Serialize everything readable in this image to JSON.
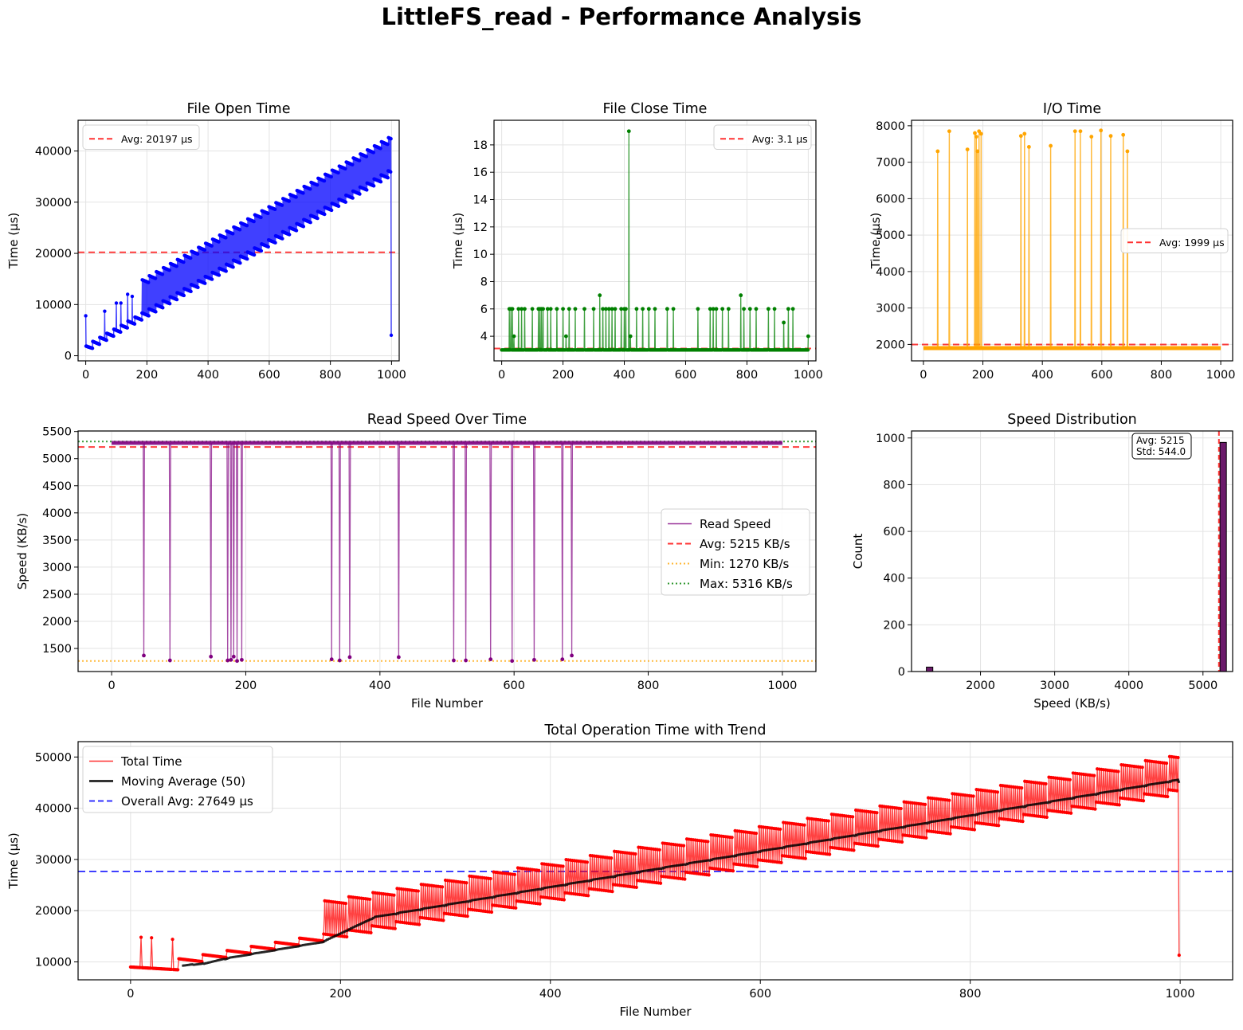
{
  "figure_title": "LittleFS_read - Performance Analysis",
  "colors": {
    "open": "#0000ff",
    "close": "#008000",
    "io": "#ffa500",
    "speed": "#800080",
    "total": "#ff0000",
    "avg": "#ff0000",
    "min": "#ffa500",
    "max": "#008000",
    "moving": "#000000",
    "overall": "#0000ff",
    "hist": "#6b1a6b"
  },
  "chart_data": [
    {
      "id": "open",
      "type": "line",
      "title": "File Open Time",
      "xlabel": "",
      "ylabel": "Time (µs)",
      "xlim": [
        -25,
        1025
      ],
      "ylim": [
        -1000,
        46000
      ],
      "xticks": [
        0,
        200,
        400,
        600,
        800,
        1000
      ],
      "yticks": [
        0,
        10000,
        20000,
        30000,
        40000
      ],
      "legend": [
        "Avg: 20197 µs"
      ],
      "legend_position": "upper-left",
      "average": 20197,
      "model": {
        "n": 1000,
        "period": 23,
        "base_start": 2000,
        "base_end": 36500,
        "spike_height": 6500,
        "first_level": 1900,
        "final_value": 4000
      },
      "spikes": [
        [
          0,
          7800
        ],
        [
          62,
          8700
        ],
        [
          100,
          10300
        ],
        [
          115,
          10300
        ],
        [
          137,
          12000
        ],
        [
          152,
          11600
        ]
      ]
    },
    {
      "id": "close",
      "type": "line",
      "title": "File Close Time",
      "xlabel": "",
      "ylabel": "Time (µs)",
      "xlim": [
        -25,
        1025
      ],
      "ylim": [
        2.2,
        19.8
      ],
      "xticks": [
        0,
        200,
        400,
        600,
        800,
        1000
      ],
      "yticks": [
        4,
        6,
        8,
        10,
        12,
        14,
        16,
        18
      ],
      "legend": [
        "Avg: 3.1 µs"
      ],
      "legend_position": "upper-right",
      "average": 3.1,
      "baseline": 3,
      "spikes": [
        [
          25,
          6
        ],
        [
          30,
          6
        ],
        [
          35,
          6
        ],
        [
          40,
          4
        ],
        [
          55,
          6
        ],
        [
          65,
          6
        ],
        [
          75,
          6
        ],
        [
          100,
          6
        ],
        [
          120,
          6
        ],
        [
          125,
          6
        ],
        [
          130,
          6
        ],
        [
          135,
          6
        ],
        [
          150,
          6
        ],
        [
          160,
          6
        ],
        [
          180,
          6
        ],
        [
          200,
          6
        ],
        [
          210,
          4
        ],
        [
          220,
          6
        ],
        [
          240,
          6
        ],
        [
          270,
          6
        ],
        [
          300,
          6
        ],
        [
          320,
          7
        ],
        [
          330,
          6
        ],
        [
          340,
          6
        ],
        [
          350,
          6
        ],
        [
          360,
          6
        ],
        [
          370,
          6
        ],
        [
          390,
          6
        ],
        [
          400,
          6
        ],
        [
          405,
          6
        ],
        [
          415,
          19
        ],
        [
          420,
          4
        ],
        [
          440,
          6
        ],
        [
          460,
          6
        ],
        [
          480,
          6
        ],
        [
          500,
          6
        ],
        [
          540,
          6
        ],
        [
          560,
          6
        ],
        [
          640,
          6
        ],
        [
          680,
          6
        ],
        [
          690,
          6
        ],
        [
          700,
          6
        ],
        [
          720,
          6
        ],
        [
          740,
          6
        ],
        [
          780,
          7
        ],
        [
          790,
          6
        ],
        [
          810,
          6
        ],
        [
          830,
          6
        ],
        [
          870,
          6
        ],
        [
          890,
          6
        ],
        [
          920,
          5
        ],
        [
          935,
          6
        ],
        [
          950,
          6
        ],
        [
          1000,
          4
        ]
      ]
    },
    {
      "id": "io",
      "type": "line",
      "title": "I/O Time",
      "xlabel": "",
      "ylabel": "Time (µs)",
      "xlim": [
        -40,
        1040
      ],
      "ylim": [
        1550,
        8150
      ],
      "xticks": [
        0,
        200,
        400,
        600,
        800,
        1000
      ],
      "yticks": [
        2000,
        3000,
        4000,
        5000,
        6000,
        7000,
        8000
      ],
      "legend": [
        "Avg: 1999 µs"
      ],
      "legend_position": "center-right",
      "average": 1999,
      "baseline": 1900,
      "spikes": [
        [
          48,
          7300
        ],
        [
          87,
          7850
        ],
        [
          148,
          7350
        ],
        [
          173,
          7800
        ],
        [
          178,
          7700
        ],
        [
          182,
          7300
        ],
        [
          187,
          7850
        ],
        [
          194,
          7780
        ],
        [
          328,
          7720
        ],
        [
          340,
          7780
        ],
        [
          355,
          7420
        ],
        [
          428,
          7450
        ],
        [
          510,
          7850
        ],
        [
          528,
          7850
        ],
        [
          565,
          7700
        ],
        [
          597,
          7870
        ],
        [
          630,
          7720
        ],
        [
          672,
          7750
        ],
        [
          686,
          7300
        ]
      ]
    },
    {
      "id": "speed",
      "type": "line",
      "title": "Read Speed Over Time",
      "xlabel": "File Number",
      "ylabel": "Speed (KB/s)",
      "xlim": [
        -50,
        1050
      ],
      "ylim": [
        1075,
        5510
      ],
      "xticks": [
        0,
        200,
        400,
        600,
        800,
        1000
      ],
      "yticks": [
        1500,
        2000,
        2500,
        3000,
        3500,
        4000,
        4500,
        5000,
        5500
      ],
      "legend": [
        "Read Speed",
        "Avg: 5215 KB/s",
        "Min: 1270 KB/s",
        "Max: 5316 KB/s"
      ],
      "legend_position": "center-right",
      "average": 5215,
      "min": 1270,
      "max": 5316,
      "baseline": 5290,
      "dips": [
        [
          48,
          1370
        ],
        [
          87,
          1280
        ],
        [
          148,
          1350
        ],
        [
          173,
          1280
        ],
        [
          178,
          1290
        ],
        [
          182,
          1350
        ],
        [
          187,
          1270
        ],
        [
          194,
          1290
        ],
        [
          328,
          1300
        ],
        [
          340,
          1280
        ],
        [
          355,
          1340
        ],
        [
          428,
          1340
        ],
        [
          510,
          1280
        ],
        [
          528,
          1280
        ],
        [
          565,
          1300
        ],
        [
          597,
          1270
        ],
        [
          630,
          1290
        ],
        [
          672,
          1300
        ],
        [
          686,
          1370
        ]
      ]
    },
    {
      "id": "dist",
      "type": "bar",
      "title": "Speed Distribution",
      "xlabel": "Speed (KB/s)",
      "ylabel": "Count",
      "xlim": [
        1070,
        5400
      ],
      "ylim": [
        0,
        1030
      ],
      "xticks": [
        2000,
        3000,
        4000,
        5000
      ],
      "yticks": [
        0,
        200,
        400,
        600,
        800,
        1000
      ],
      "bins": [
        [
          1270,
          1357,
          19
        ],
        [
          5229,
          5316,
          981
        ]
      ],
      "average": 5215,
      "annotation": [
        "Avg: 5215",
        "Std: 544.0"
      ]
    },
    {
      "id": "total",
      "type": "line",
      "title": "Total Operation Time with Trend",
      "xlabel": "File Number",
      "ylabel": "Time (µs)",
      "xlim": [
        -50,
        1050
      ],
      "ylim": [
        6500,
        53000
      ],
      "xticks": [
        0,
        200,
        400,
        600,
        800,
        1000
      ],
      "yticks": [
        10000,
        20000,
        30000,
        40000,
        50000
      ],
      "legend": [
        "Total Time",
        "Moving Average (50)",
        "Overall Avg: 27649 µs"
      ],
      "legend_position": "upper-left",
      "average": 27649,
      "moving_window": 50,
      "model": {
        "n": 1000,
        "period": 23,
        "base_start": 9000,
        "base_end": 44000,
        "spike_height": 6500,
        "final_value": 11300
      },
      "spikes": [
        [
          10,
          14800
        ],
        [
          20,
          14700
        ],
        [
          40,
          14400
        ]
      ]
    }
  ]
}
